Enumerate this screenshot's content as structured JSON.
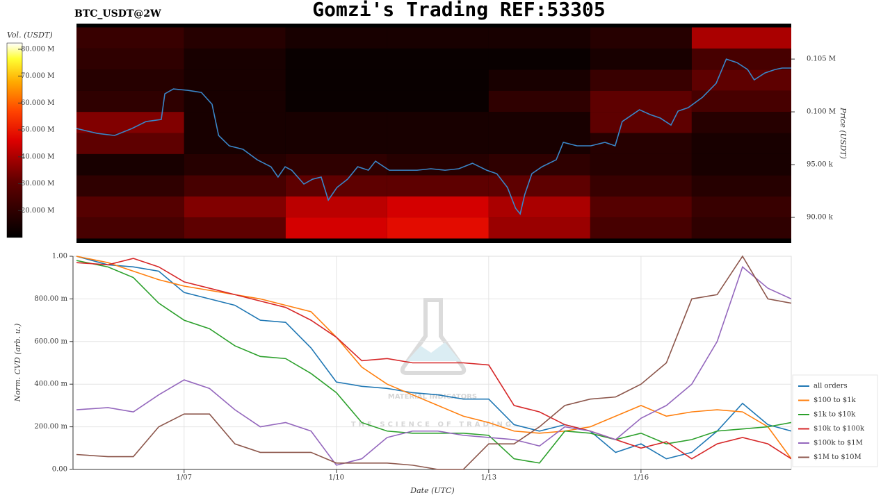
{
  "chart_data": [
    {
      "type": "heatmap",
      "title": "Gomzi's Trading REF:53305",
      "subtitle": "BTC_USDT@2W",
      "ylabel": "Price (USDT)",
      "colorbar_label": "Vol. (USDT)",
      "xlim": [
        4.88,
        18.96
      ],
      "ylim": [
        87570,
        108360
      ],
      "yticks": [
        {
          "value": 90000,
          "label": "90.00 k"
        },
        {
          "value": 95000,
          "label": "95.00 k"
        },
        {
          "value": 100000,
          "label": "0.100 M"
        },
        {
          "value": 105000,
          "label": "0.105 M"
        }
      ],
      "clim": [
        10000000,
        82300000
      ],
      "cticks": [
        {
          "value": 20000000,
          "label": "20.000 M"
        },
        {
          "value": 30000000,
          "label": "30.000 M"
        },
        {
          "value": 40000000,
          "label": "40.000 M"
        },
        {
          "value": 50000000,
          "label": "50.000 M"
        },
        {
          "value": 60000000,
          "label": "60.000 M"
        },
        {
          "value": 70000000,
          "label": "70.000 M"
        },
        {
          "value": 80000000,
          "label": "80.000 M"
        }
      ],
      "heatmap": {
        "x_edges": [
          4.88,
          7,
          9,
          11,
          13,
          15,
          17,
          18.96
        ],
        "y_edges": [
          88000,
          90000,
          92000,
          94000,
          96000,
          98000,
          100000,
          102000,
          104000,
          106000,
          108000
        ],
        "values": [
          [
            25000000,
            30000000,
            45000000,
            48000000,
            38000000,
            25000000,
            20000000
          ],
          [
            28000000,
            35000000,
            42000000,
            45000000,
            40000000,
            28000000,
            22000000
          ],
          [
            20000000,
            25000000,
            30000000,
            30000000,
            30000000,
            22000000,
            18000000
          ],
          [
            15000000,
            18000000,
            20000000,
            18000000,
            20000000,
            18000000,
            15000000
          ],
          [
            30000000,
            15000000,
            15000000,
            15000000,
            15000000,
            18000000,
            15000000
          ],
          [
            35000000,
            15000000,
            15000000,
            15000000,
            15000000,
            30000000,
            18000000
          ],
          [
            20000000,
            15000000,
            12000000,
            12000000,
            20000000,
            30000000,
            25000000
          ],
          [
            18000000,
            15000000,
            12000000,
            12000000,
            15000000,
            22000000,
            30000000
          ],
          [
            20000000,
            15000000,
            12000000,
            12000000,
            12000000,
            15000000,
            25000000
          ],
          [
            22000000,
            18000000,
            15000000,
            15000000,
            15000000,
            18000000,
            40000000
          ]
        ]
      },
      "x": [
        4.88,
        5.29,
        5.63,
        5.97,
        6.25,
        6.55,
        6.62,
        6.79,
        7.07,
        7.34,
        7.55,
        7.68,
        7.89,
        8.16,
        8.44,
        8.71,
        8.85,
        8.99,
        9.12,
        9.36,
        9.53,
        9.7,
        9.84,
        10.01,
        10.22,
        10.42,
        10.63,
        10.77,
        11.04,
        11.32,
        11.59,
        11.86,
        12.14,
        12.41,
        12.68,
        12.96,
        13.16,
        13.37,
        13.53,
        13.62,
        13.71,
        13.85,
        14.05,
        14.33,
        14.47,
        14.74,
        15.01,
        15.29,
        15.49,
        15.63,
        15.77,
        15.97,
        16.18,
        16.38,
        16.59,
        16.73,
        16.93,
        17.21,
        17.48,
        17.68,
        17.89,
        18.1,
        18.23,
        18.44,
        18.64,
        18.78,
        18.96
      ],
      "series": [
        {
          "name": "price",
          "color": "#3a86c8",
          "values": [
            98420,
            97960,
            97760,
            98420,
            99080,
            99280,
            101710,
            102170,
            102040,
            101840,
            100720,
            97760,
            96780,
            96450,
            95460,
            94800,
            93820,
            94800,
            94470,
            93160,
            93620,
            93820,
            91640,
            92830,
            93620,
            94800,
            94470,
            95330,
            94470,
            94470,
            94470,
            94610,
            94470,
            94610,
            95130,
            94470,
            94140,
            92830,
            90860,
            90330,
            92170,
            94140,
            94800,
            95460,
            97110,
            96780,
            96780,
            97110,
            96780,
            99080,
            99540,
            100200,
            99740,
            99410,
            98750,
            100070,
            100400,
            101380,
            102700,
            105000,
            104670,
            104010,
            103030,
            103680,
            104010,
            104150,
            104150
          ]
        }
      ]
    },
    {
      "type": "line",
      "xlabel": "Date (UTC)",
      "ylabel": "Norm. CVD (arb. u.)",
      "watermark": [
        "MATERIAL INDICATORS",
        "THE SCIENCE OF TRADING"
      ],
      "xlim": [
        4.88,
        18.96
      ],
      "ylim": [
        0,
        1
      ],
      "xticks": [
        {
          "value": 7,
          "label": "1/07"
        },
        {
          "value": 10,
          "label": "1/10"
        },
        {
          "value": 13,
          "label": "1/13"
        },
        {
          "value": 16,
          "label": "1/16"
        }
      ],
      "yticks": [
        {
          "value": 0,
          "label": "0.00"
        },
        {
          "value": 0.2,
          "label": "200.00 m"
        },
        {
          "value": 0.4,
          "label": "400.00 m"
        },
        {
          "value": 0.6,
          "label": "600.00 m"
        },
        {
          "value": 0.8,
          "label": "800.00 m"
        },
        {
          "value": 1,
          "label": "1.00"
        }
      ],
      "grid": true,
      "legend": "right",
      "x": [
        4.88,
        5.5,
        6,
        6.5,
        7,
        7.5,
        8,
        8.5,
        9,
        9.5,
        10,
        10.5,
        11,
        11.5,
        12,
        12.5,
        13,
        13.5,
        14,
        14.5,
        15,
        15.5,
        16,
        16.5,
        17,
        17.5,
        18,
        18.5,
        18.96
      ],
      "series": [
        {
          "name": "all orders",
          "color": "#1f77b4",
          "values": [
            1.0,
            0.96,
            0.95,
            0.93,
            0.83,
            0.8,
            0.77,
            0.7,
            0.69,
            0.57,
            0.41,
            0.39,
            0.38,
            0.36,
            0.35,
            0.33,
            0.33,
            0.21,
            0.18,
            0.21,
            0.18,
            0.08,
            0.12,
            0.05,
            0.08,
            0.18,
            0.31,
            0.21,
            0.18
          ]
        },
        {
          "name": "$100 to $1k",
          "color": "#ff7f0e",
          "values": [
            1.0,
            0.97,
            0.93,
            0.89,
            0.86,
            0.84,
            0.82,
            0.8,
            0.77,
            0.74,
            0.62,
            0.48,
            0.4,
            0.35,
            0.3,
            0.25,
            0.22,
            0.18,
            0.17,
            0.18,
            0.2,
            0.25,
            0.3,
            0.25,
            0.27,
            0.28,
            0.27,
            0.2,
            0.05
          ]
        },
        {
          "name": "$1k to $10k",
          "color": "#2ca02c",
          "values": [
            0.98,
            0.95,
            0.9,
            0.78,
            0.7,
            0.66,
            0.58,
            0.53,
            0.52,
            0.45,
            0.36,
            0.22,
            0.18,
            0.17,
            0.17,
            0.17,
            0.16,
            0.05,
            0.03,
            0.18,
            0.17,
            0.14,
            0.17,
            0.12,
            0.14,
            0.18,
            0.19,
            0.2,
            0.22
          ]
        },
        {
          "name": "$10k to $100k",
          "color": "#d62728",
          "values": [
            0.97,
            0.96,
            0.99,
            0.95,
            0.88,
            0.85,
            0.82,
            0.79,
            0.76,
            0.7,
            0.62,
            0.51,
            0.52,
            0.5,
            0.5,
            0.5,
            0.49,
            0.3,
            0.27,
            0.21,
            0.18,
            0.14,
            0.1,
            0.13,
            0.05,
            0.12,
            0.15,
            0.12,
            0.05
          ]
        },
        {
          "name": "$100k to $1M",
          "color": "#9467bd",
          "values": [
            0.28,
            0.29,
            0.27,
            0.35,
            0.42,
            0.38,
            0.28,
            0.2,
            0.22,
            0.18,
            0.02,
            0.05,
            0.15,
            0.18,
            0.18,
            0.16,
            0.15,
            0.14,
            0.11,
            0.2,
            0.18,
            0.14,
            0.24,
            0.3,
            0.4,
            0.6,
            0.95,
            0.85,
            0.8
          ]
        },
        {
          "name": "$1M to $10M",
          "color": "#8c564b",
          "values": [
            0.07,
            0.06,
            0.06,
            0.2,
            0.26,
            0.26,
            0.12,
            0.08,
            0.08,
            0.08,
            0.03,
            0.03,
            0.03,
            0.02,
            0.0,
            0.0,
            0.12,
            0.12,
            0.2,
            0.3,
            0.33,
            0.34,
            0.4,
            0.5,
            0.8,
            0.82,
            1.0,
            0.8,
            0.78
          ]
        }
      ]
    }
  ]
}
